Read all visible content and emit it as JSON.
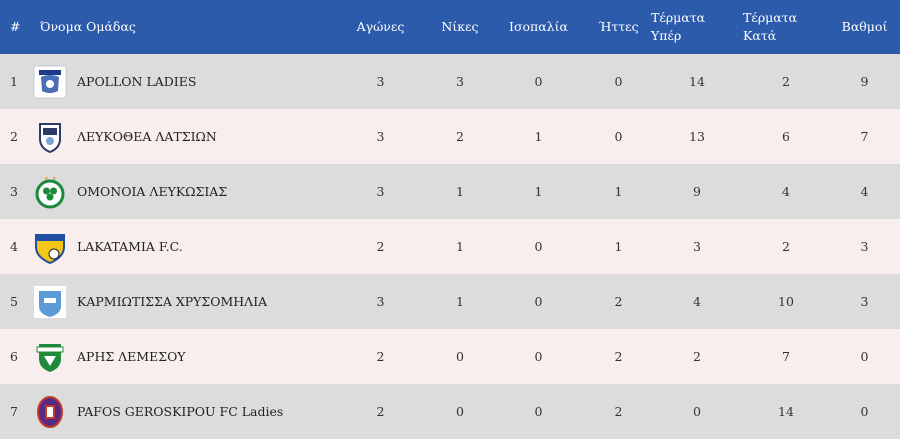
{
  "header": {
    "rank": "#",
    "team": "Όνομα Ομάδας",
    "played": "Αγώνες",
    "wins": "Νίκες",
    "draws": "Ισοπαλία",
    "losses": "Ήττες",
    "goals_for_1": "Τέρματα",
    "goals_for_2": "Υπέρ",
    "goals_against_1": "Τέρματα",
    "goals_against_2": "Κατά",
    "points": "Βαθμοί"
  },
  "colors": {
    "header_bg": "#2c5bab",
    "row_odd": "#dcdcdc",
    "row_even": "#f8eeee"
  },
  "rows": [
    {
      "rank": "1",
      "team": "APOLLON LADIES",
      "logo": "apollon-ladies-crest-icon",
      "played": "3",
      "wins": "3",
      "draws": "0",
      "losses": "0",
      "gf": "14",
      "ga": "2",
      "pts": "9"
    },
    {
      "rank": "2",
      "team": "ΛΕΥΚΟΘΕΑ ΛΑΤΣΙΩΝ",
      "logo": "lefkothea-latsion-crest-icon",
      "played": "3",
      "wins": "2",
      "draws": "1",
      "losses": "0",
      "gf": "13",
      "ga": "6",
      "pts": "7"
    },
    {
      "rank": "3",
      "team": "ΟΜΟΝΟΙΑ ΛΕΥΚΩΣΙΑΣ",
      "logo": "omonoia-clover-crest-icon",
      "played": "3",
      "wins": "1",
      "draws": "1",
      "losses": "1",
      "gf": "9",
      "ga": "4",
      "pts": "4"
    },
    {
      "rank": "4",
      "team": "LAKATAMIA F.C.",
      "logo": "lakatamia-shield-crest-icon",
      "played": "2",
      "wins": "1",
      "draws": "0",
      "losses": "1",
      "gf": "3",
      "ga": "2",
      "pts": "3"
    },
    {
      "rank": "5",
      "team": "ΚΑΡΜΙΩΤΙΣΣΑ ΧΡΥΣΟΜΗΛΙΑ",
      "logo": "karmiotissa-crest-icon",
      "played": "3",
      "wins": "1",
      "draws": "0",
      "losses": "2",
      "gf": "4",
      "ga": "10",
      "pts": "3"
    },
    {
      "rank": "6",
      "team": "ΑΡΗΣ ΛΕΜΕΣΟΥ",
      "logo": "aris-limassol-crest-icon",
      "played": "2",
      "wins": "0",
      "draws": "0",
      "losses": "2",
      "gf": "2",
      "ga": "7",
      "pts": "0"
    },
    {
      "rank": "7",
      "team": "PAFOS GEROSKIPOU FC Ladies",
      "logo": "pafos-geroskipou-crest-icon",
      "played": "2",
      "wins": "0",
      "draws": "0",
      "losses": "2",
      "gf": "0",
      "ga": "14",
      "pts": "0"
    }
  ]
}
